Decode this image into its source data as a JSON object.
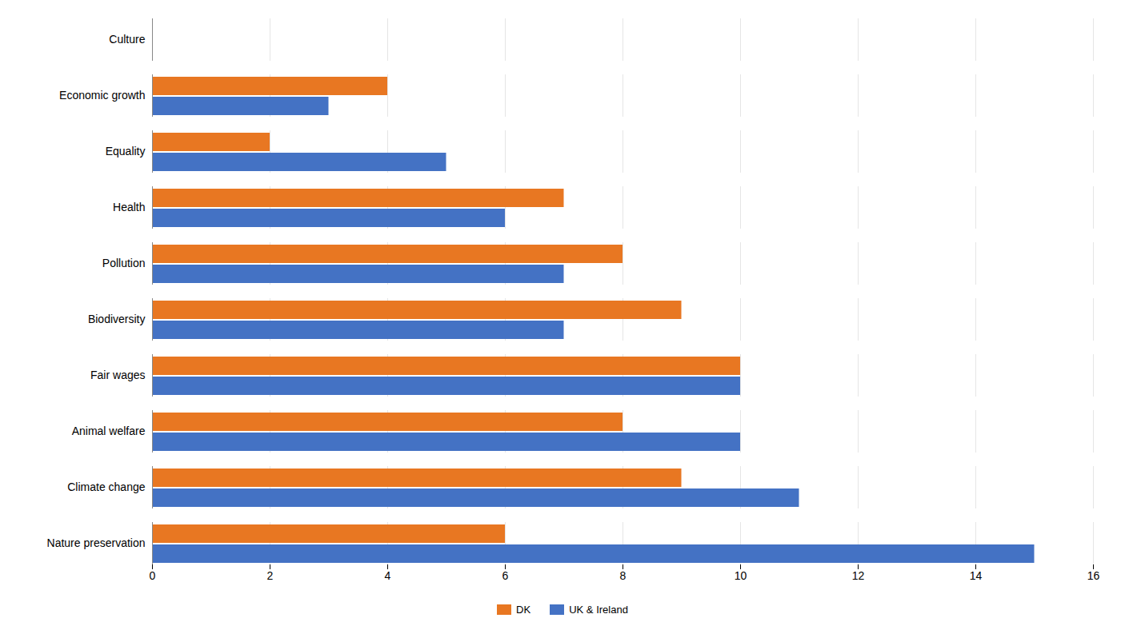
{
  "chart_data": {
    "type": "bar",
    "orientation": "horizontal",
    "categories": [
      "Nature preservation",
      "Climate change",
      "Animal welfare",
      "Fair wages",
      "Biodiversity",
      "Pollution",
      "Health",
      "Equality",
      "Economic growth",
      "Culture"
    ],
    "series": [
      {
        "name": "DK",
        "color": "#E87722",
        "values": [
          6,
          9,
          8,
          10,
          9,
          8,
          7,
          2,
          4,
          0
        ]
      },
      {
        "name": "UK & Ireland",
        "color": "#4472C4",
        "values": [
          15,
          11,
          10,
          10,
          7,
          7,
          6,
          5,
          3,
          0
        ]
      }
    ],
    "xlim": [
      0,
      16
    ],
    "xticks": [
      0,
      2,
      4,
      6,
      8,
      10,
      12,
      14,
      16
    ],
    "grid": true,
    "legend": "bottom"
  }
}
